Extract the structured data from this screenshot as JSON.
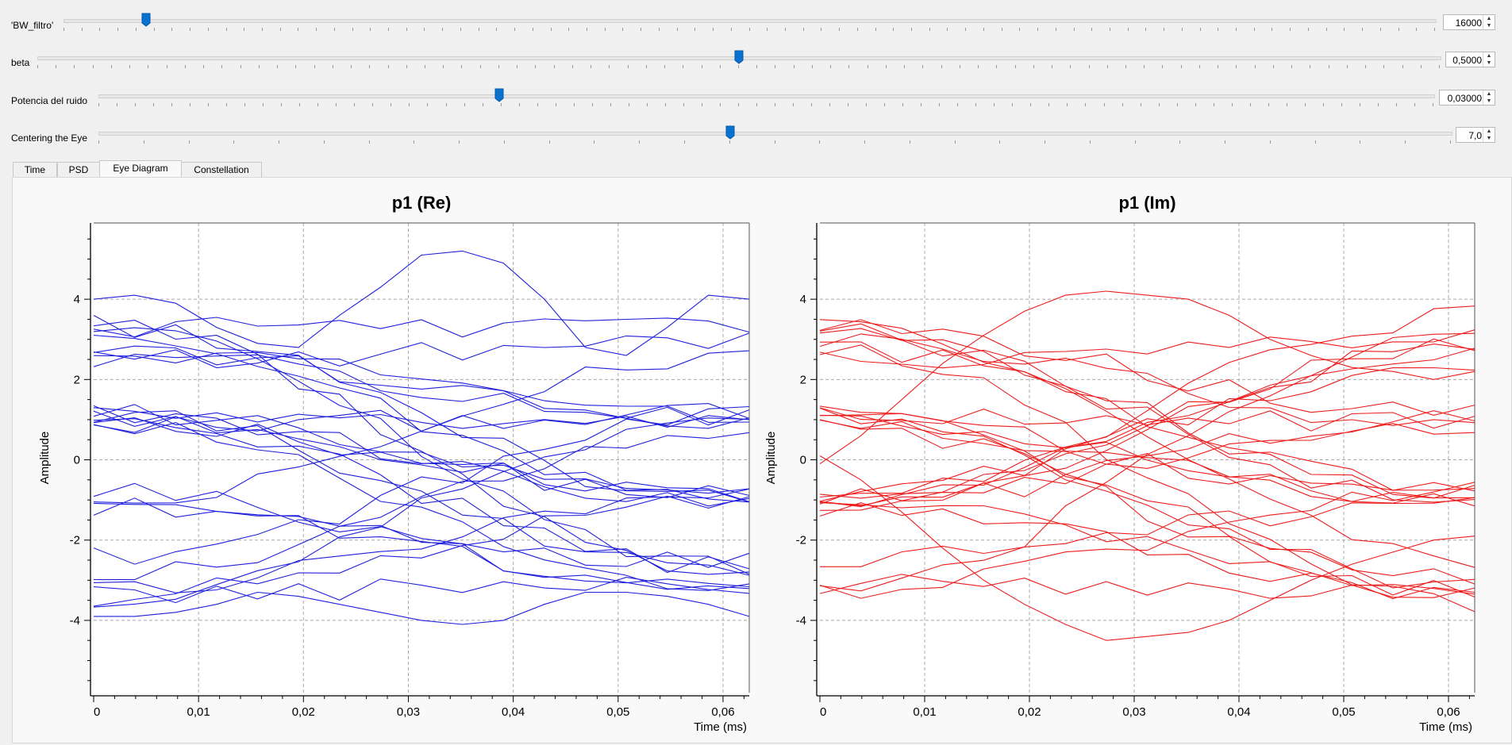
{
  "sliders": [
    {
      "label": "'BW_filtro'",
      "value": "16000",
      "fraction": 0.06
    },
    {
      "label": "beta",
      "value": "0,5000",
      "fraction": 0.5
    },
    {
      "label": "Potencia del ruido",
      "value": "0,03000",
      "fraction": 0.3
    },
    {
      "label": "Centering the Eye",
      "value": "7,0",
      "fraction": 0.467
    }
  ],
  "tabs": [
    "Time",
    "PSD",
    "Eye Diagram",
    "Constellation"
  ],
  "active_tab": "Eye Diagram",
  "colors": {
    "re": "#1f1fdd",
    "im": "#ee1c1c",
    "accent": "#0a72d0"
  },
  "chart_data": [
    {
      "type": "line",
      "title": "p1 (Re)",
      "xlabel": "Time (ms)",
      "ylabel": "Amplitude",
      "xlim": [
        0,
        0.0625
      ],
      "ylim": [
        -5.8,
        5.9
      ],
      "xticks": [
        "0",
        "0,01",
        "0,02",
        "0,03",
        "0,04",
        "0,05",
        "0,06"
      ],
      "yticks": [
        "4",
        "2",
        "0",
        "-2",
        "-4"
      ],
      "grid": true,
      "num_traces": 30,
      "series": [
        {
          "values": [
            4.0,
            4.1,
            3.9,
            3.3,
            2.9,
            2.8,
            3.6,
            4.3,
            5.1,
            5.2,
            4.9,
            4.0,
            2.8,
            2.6,
            3.3,
            4.1,
            4.0
          ]
        },
        {
          "values": [
            -3.9,
            -3.9,
            -3.8,
            -3.6,
            -3.3,
            -3.4,
            -3.6,
            -3.8,
            -4.0,
            -4.1,
            -4.0,
            -3.6,
            -3.3,
            -3.3,
            -3.4,
            -3.6,
            -3.9
          ]
        }
      ]
    },
    {
      "type": "line",
      "title": "p1 (Im)",
      "xlabel": "Time (ms)",
      "ylabel": "Amplitude",
      "xlim": [
        0,
        0.0625
      ],
      "ylim": [
        -5.8,
        5.9
      ],
      "xticks": [
        "0",
        "0,01",
        "0,02",
        "0,03",
        "0,04",
        "0,05",
        "0,06"
      ],
      "yticks": [
        "4",
        "2",
        "0",
        "-2",
        "-4"
      ],
      "grid": true,
      "num_traces": 30,
      "series": [
        {
          "values": [
            -0.1,
            0.6,
            1.5,
            2.4,
            3.1,
            3.7,
            4.1,
            4.2,
            4.1,
            4.0,
            3.6,
            3.0,
            2.6,
            2.3,
            2.2,
            2.0,
            2.2
          ]
        },
        {
          "values": [
            0.1,
            -0.5,
            -1.3,
            -2.2,
            -3.0,
            -3.6,
            -4.1,
            -4.5,
            -4.4,
            -4.3,
            -4.0,
            -3.5,
            -3.0,
            -2.6,
            -2.3,
            -2.0,
            -1.9
          ]
        }
      ]
    }
  ]
}
